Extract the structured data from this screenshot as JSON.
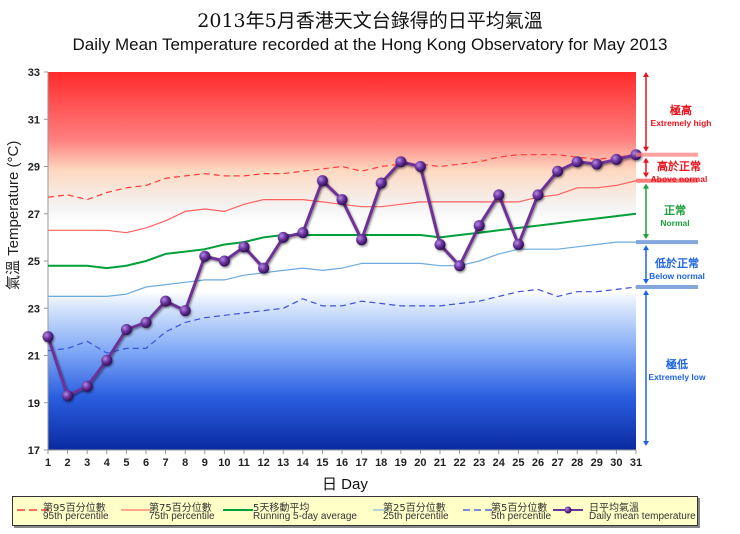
{
  "header": {
    "title_zh": "2013年5月香港天文台錄得的日平均氣溫",
    "title_en": "Daily Mean Temperature recorded at the Hong Kong Observatory for May 2013"
  },
  "axes": {
    "ylabel": "氣溫  Temperature (°C)",
    "xlabel": "日 Day",
    "yticks": [
      "17",
      "19",
      "21",
      "23",
      "25",
      "27",
      "29",
      "31",
      "33"
    ],
    "xticks": [
      "1",
      "2",
      "3",
      "4",
      "5",
      "6",
      "7",
      "8",
      "9",
      "10",
      "11",
      "12",
      "13",
      "14",
      "15",
      "16",
      "17",
      "18",
      "19",
      "20",
      "21",
      "22",
      "23",
      "24",
      "25",
      "26",
      "27",
      "28",
      "29",
      "30",
      "31"
    ]
  },
  "bands": [
    {
      "zh": "極高",
      "en": "Extremely high",
      "color": "#e8141e"
    },
    {
      "zh": "高於正常",
      "en": "Above normal",
      "color": "#e8141e"
    },
    {
      "zh": "正常",
      "en": "Normal",
      "color": "#1ea03c"
    },
    {
      "zh": "低於正常",
      "en": "Below normal",
      "color": "#1e64e6"
    },
    {
      "zh": "極低",
      "en": "Extremely low",
      "color": "#1e64e6"
    }
  ],
  "legend": [
    {
      "zh": "第95百分位數",
      "en": "95th percentile",
      "color": "#ff3c3c",
      "style": "dashed"
    },
    {
      "zh": "第75百分位數",
      "en": "75th percentile",
      "color": "#ff5050",
      "style": "solid"
    },
    {
      "zh": "5天移動平均",
      "en": "Running 5-day average",
      "color": "#00a03c",
      "style": "solid"
    },
    {
      "zh": "第25百分位數",
      "en": "25th percentile",
      "color": "#6eaadc",
      "style": "solid"
    },
    {
      "zh": "第5百分位數",
      "en": "5th percentile",
      "color": "#2846dc",
      "style": "dashed"
    },
    {
      "zh": "日平均氣溫",
      "en": "Daily mean temperature",
      "color": "#6e3296",
      "style": "marker"
    }
  ],
  "chart_data": {
    "type": "line",
    "title": "Daily Mean Temperature recorded at the Hong Kong Observatory for May 2013",
    "subtitle": "2013年5月香港天文台錄得的日平均氣溫",
    "xlabel": "日 Day",
    "ylabel": "氣溫 Temperature (°C)",
    "ylim": [
      17,
      33
    ],
    "xlim": [
      1,
      31
    ],
    "grid": false,
    "legend_position": "bottom",
    "x": [
      1,
      2,
      3,
      4,
      5,
      6,
      7,
      8,
      9,
      10,
      11,
      12,
      13,
      14,
      15,
      16,
      17,
      18,
      19,
      20,
      21,
      22,
      23,
      24,
      25,
      26,
      27,
      28,
      29,
      30,
      31
    ],
    "series": [
      {
        "name": "95th percentile",
        "values": [
          27.7,
          27.8,
          27.6,
          27.9,
          28.1,
          28.2,
          28.5,
          28.6,
          28.7,
          28.6,
          28.6,
          28.7,
          28.7,
          28.8,
          28.9,
          29.0,
          28.8,
          29.0,
          29.1,
          29.1,
          29.0,
          29.1,
          29.2,
          29.4,
          29.5,
          29.5,
          29.5,
          29.4,
          29.3,
          29.4,
          29.5
        ]
      },
      {
        "name": "75th percentile",
        "values": [
          26.3,
          26.3,
          26.3,
          26.3,
          26.2,
          26.4,
          26.7,
          27.1,
          27.2,
          27.1,
          27.4,
          27.6,
          27.6,
          27.6,
          27.5,
          27.4,
          27.3,
          27.3,
          27.4,
          27.5,
          27.5,
          27.5,
          27.5,
          27.5,
          27.5,
          27.7,
          27.8,
          28.1,
          28.1,
          28.2,
          28.4
        ]
      },
      {
        "name": "Running 5-day average",
        "values": [
          24.8,
          24.8,
          24.8,
          24.7,
          24.8,
          25.0,
          25.3,
          25.4,
          25.5,
          25.7,
          25.8,
          26.0,
          26.1,
          26.1,
          26.1,
          26.1,
          26.1,
          26.1,
          26.1,
          26.1,
          26.0,
          26.1,
          26.2,
          26.3,
          26.4,
          26.5,
          26.6,
          26.7,
          26.8,
          26.9,
          27.0
        ]
      },
      {
        "name": "25th percentile",
        "values": [
          23.5,
          23.5,
          23.5,
          23.5,
          23.6,
          23.9,
          24.0,
          24.1,
          24.2,
          24.2,
          24.4,
          24.5,
          24.6,
          24.7,
          24.6,
          24.7,
          24.9,
          24.9,
          24.9,
          24.9,
          24.8,
          24.8,
          25.0,
          25.3,
          25.5,
          25.5,
          25.5,
          25.6,
          25.7,
          25.8,
          25.8
        ]
      },
      {
        "name": "5th percentile",
        "values": [
          21.2,
          21.3,
          21.6,
          21.1,
          21.3,
          21.3,
          22.0,
          22.4,
          22.6,
          22.7,
          22.8,
          22.9,
          23.0,
          23.4,
          23.1,
          23.1,
          23.3,
          23.2,
          23.1,
          23.1,
          23.1,
          23.2,
          23.3,
          23.5,
          23.7,
          23.8,
          23.5,
          23.7,
          23.7,
          23.8,
          23.9
        ]
      },
      {
        "name": "Daily mean temperature",
        "values": [
          21.8,
          19.3,
          19.7,
          20.8,
          22.1,
          22.4,
          23.3,
          22.9,
          25.2,
          25.0,
          25.6,
          24.7,
          26.0,
          26.2,
          28.4,
          27.6,
          25.9,
          28.3,
          29.2,
          29.0,
          25.7,
          24.8,
          26.5,
          27.8,
          25.7,
          27.8,
          28.8,
          29.2,
          29.1,
          29.3,
          29.5
        ]
      }
    ],
    "annotations": [
      "極高 Extremely high",
      "高於正常 Above normal",
      "正常 Normal",
      "低於正常 Below normal",
      "極低 Extremely low"
    ]
  }
}
